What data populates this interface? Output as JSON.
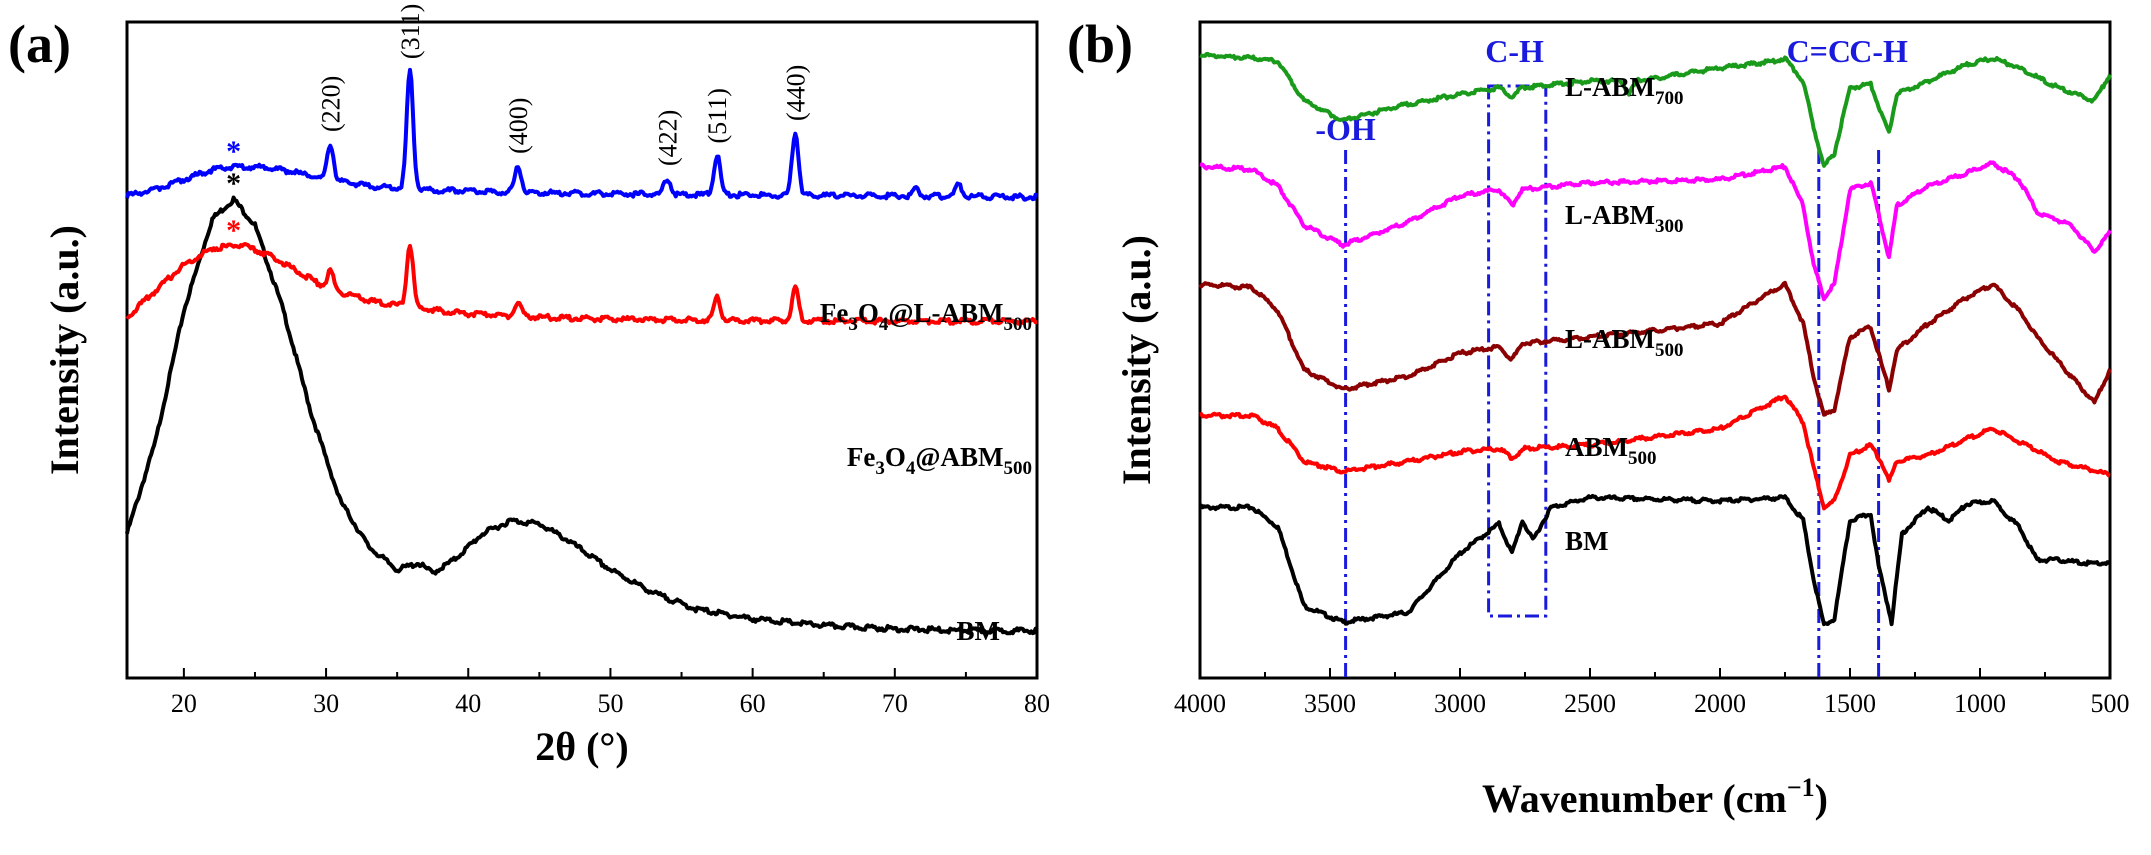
{
  "chart_data": [
    {
      "type": "line",
      "panel_label": "(a)",
      "xlabel": "2θ (°)",
      "ylabel": "Intensity (a.u.)",
      "xlim": [
        16,
        80
      ],
      "ylim": [
        0,
        10
      ],
      "xticks": [
        20,
        30,
        40,
        50,
        60,
        70,
        80
      ],
      "peak_labels": [
        {
          "text": "(220)",
          "x": 30.3
        },
        {
          "text": "(311)",
          "x": 35.9
        },
        {
          "text": "(400)",
          "x": 43.5
        },
        {
          "text": "(422)",
          "x": 54.0
        },
        {
          "text": "(511)",
          "x": 57.5
        },
        {
          "text": "(440)",
          "x": 63.0
        }
      ],
      "series": [
        {
          "name": "BM",
          "color": "#000000",
          "baseline": 0.7,
          "marker": {
            "text": "*",
            "x": 23.5
          },
          "points": [
            [
              16,
              2.2
            ],
            [
              18,
              3.6
            ],
            [
              20,
              5.6
            ],
            [
              22,
              7.0
            ],
            [
              23.5,
              7.3
            ],
            [
              25,
              6.9
            ],
            [
              27,
              5.6
            ],
            [
              29,
              4.0
            ],
            [
              31,
              2.7
            ],
            [
              33,
              2.0
            ],
            [
              35,
              1.65
            ],
            [
              36.5,
              1.75
            ],
            [
              37.5,
              1.6
            ],
            [
              39,
              1.8
            ],
            [
              41,
              2.2
            ],
            [
              43,
              2.4
            ],
            [
              45,
              2.35
            ],
            [
              47,
              2.1
            ],
            [
              50,
              1.65
            ],
            [
              53,
              1.3
            ],
            [
              56,
              1.05
            ],
            [
              60,
              0.9
            ],
            [
              65,
              0.8
            ],
            [
              70,
              0.75
            ],
            [
              75,
              0.72
            ],
            [
              80,
              0.72
            ]
          ],
          "peaks": []
        },
        {
          "name": "Fe3O4@ABM500",
          "color": "#ff0000",
          "baseline": 5.45,
          "marker": {
            "text": "*",
            "x": 23.5
          },
          "points": [
            [
              16,
              5.5
            ],
            [
              18,
              5.9
            ],
            [
              20,
              6.3
            ],
            [
              22,
              6.55
            ],
            [
              24,
              6.6
            ],
            [
              26,
              6.45
            ],
            [
              28,
              6.2
            ],
            [
              30,
              5.95
            ],
            [
              33,
              5.75
            ],
            [
              36,
              5.65
            ],
            [
              40,
              5.55
            ],
            [
              45,
              5.5
            ],
            [
              50,
              5.47
            ],
            [
              60,
              5.45
            ],
            [
              70,
              5.44
            ],
            [
              80,
              5.44
            ]
          ],
          "peaks": [
            [
              30.3,
              0.28
            ],
            [
              35.9,
              0.95
            ],
            [
              43.5,
              0.2
            ],
            [
              57.5,
              0.35
            ],
            [
              63.0,
              0.5
            ]
          ]
        },
        {
          "name": "Fe3O4@L-ABM500",
          "color": "#0000ff",
          "baseline": 7.35,
          "marker": {
            "text": "*",
            "x": 23.5
          },
          "points": [
            [
              16,
              7.35
            ],
            [
              18,
              7.45
            ],
            [
              20,
              7.6
            ],
            [
              22,
              7.75
            ],
            [
              24,
              7.8
            ],
            [
              26,
              7.78
            ],
            [
              28,
              7.7
            ],
            [
              30,
              7.6
            ],
            [
              33,
              7.5
            ],
            [
              36,
              7.45
            ],
            [
              40,
              7.42
            ],
            [
              45,
              7.4
            ],
            [
              50,
              7.38
            ],
            [
              60,
              7.36
            ],
            [
              70,
              7.35
            ],
            [
              80,
              7.33
            ]
          ],
          "peaks": [
            [
              30.3,
              0.55
            ],
            [
              35.9,
              1.8
            ],
            [
              43.5,
              0.4
            ],
            [
              54.0,
              0.25
            ],
            [
              57.5,
              0.6
            ],
            [
              63.0,
              0.95
            ],
            [
              71.5,
              0.12
            ],
            [
              74.5,
              0.18
            ]
          ]
        }
      ],
      "series_labels": [
        {
          "text_main": "Fe",
          "sub1": "3",
          "text_mid": "O",
          "sub2": "4",
          "text_end": "@L-ABM",
          "sub3": "500",
          "series": "Fe3O4@L-ABM500"
        },
        {
          "text_main": "Fe",
          "sub1": "3",
          "text_mid": "O",
          "sub2": "4",
          "text_end": "@ABM",
          "sub3": "500",
          "series": "Fe3O4@ABM500"
        },
        {
          "text_main": "BM",
          "series": "BM"
        }
      ]
    },
    {
      "type": "line",
      "panel_label": "(b)",
      "xlabel": "Wavenumber (cm",
      "xlabel_sup": "−1",
      "xlabel_close": ")",
      "ylabel": "Intensity (a.u.)",
      "xlim": [
        4000,
        500
      ],
      "ylim": [
        0,
        10
      ],
      "xticks": [
        4000,
        3500,
        3000,
        2500,
        2000,
        1500,
        1000,
        500
      ],
      "bands": [
        {
          "text": "-OH",
          "x": 3440
        },
        {
          "text": "C-H",
          "x": 2790
        },
        {
          "text": "C=C",
          "x": 1620
        },
        {
          "text": "C-H",
          "x": 1390
        }
      ],
      "ch_box": [
        2890,
        2670
      ],
      "series": [
        {
          "name": "BM",
          "color": "#000000",
          "points": [
            [
              4000,
              2.6
            ],
            [
              3800,
              2.6
            ],
            [
              3700,
              2.3
            ],
            [
              3600,
              1.1
            ],
            [
              3450,
              0.85
            ],
            [
              3200,
              1.0
            ],
            [
              3000,
              1.9
            ],
            [
              2900,
              2.2
            ],
            [
              2850,
              2.35
            ],
            [
              2800,
              1.9
            ],
            [
              2760,
              2.4
            ],
            [
              2720,
              2.1
            ],
            [
              2650,
              2.6
            ],
            [
              2500,
              2.75
            ],
            [
              2000,
              2.7
            ],
            [
              1750,
              2.75
            ],
            [
              1680,
              2.4
            ],
            [
              1640,
              1.5
            ],
            [
              1600,
              0.8
            ],
            [
              1560,
              0.9
            ],
            [
              1500,
              2.4
            ],
            [
              1420,
              2.5
            ],
            [
              1390,
              1.7
            ],
            [
              1360,
              1.2
            ],
            [
              1340,
              0.85
            ],
            [
              1300,
              2.2
            ],
            [
              1200,
              2.6
            ],
            [
              1120,
              2.4
            ],
            [
              1050,
              2.65
            ],
            [
              950,
              2.7
            ],
            [
              850,
              2.3
            ],
            [
              780,
              1.8
            ],
            [
              700,
              1.8
            ],
            [
              600,
              1.75
            ],
            [
              500,
              1.75
            ]
          ]
        },
        {
          "name": "ABM500",
          "color": "#ff0000",
          "points": [
            [
              4000,
              4.0
            ],
            [
              3800,
              4.0
            ],
            [
              3700,
              3.8
            ],
            [
              3600,
              3.3
            ],
            [
              3450,
              3.15
            ],
            [
              3200,
              3.3
            ],
            [
              3000,
              3.45
            ],
            [
              2850,
              3.5
            ],
            [
              2800,
              3.35
            ],
            [
              2750,
              3.5
            ],
            [
              2500,
              3.55
            ],
            [
              2000,
              3.8
            ],
            [
              1800,
              4.2
            ],
            [
              1750,
              4.3
            ],
            [
              1680,
              3.9
            ],
            [
              1640,
              3.2
            ],
            [
              1600,
              2.6
            ],
            [
              1560,
              2.7
            ],
            [
              1500,
              3.4
            ],
            [
              1420,
              3.55
            ],
            [
              1380,
              3.3
            ],
            [
              1350,
              3.0
            ],
            [
              1320,
              3.3
            ],
            [
              1200,
              3.4
            ],
            [
              1050,
              3.65
            ],
            [
              950,
              3.8
            ],
            [
              850,
              3.6
            ],
            [
              700,
              3.3
            ],
            [
              500,
              3.1
            ]
          ]
        },
        {
          "name": "L-ABM500",
          "color": "#8b0000",
          "points": [
            [
              4000,
              6.0
            ],
            [
              3800,
              5.95
            ],
            [
              3700,
              5.6
            ],
            [
              3600,
              4.7
            ],
            [
              3450,
              4.4
            ],
            [
              3200,
              4.6
            ],
            [
              3000,
              4.95
            ],
            [
              2850,
              5.05
            ],
            [
              2800,
              4.85
            ],
            [
              2760,
              5.1
            ],
            [
              2500,
              5.2
            ],
            [
              2000,
              5.4
            ],
            [
              1800,
              5.9
            ],
            [
              1750,
              6.0
            ],
            [
              1680,
              5.4
            ],
            [
              1640,
              4.6
            ],
            [
              1600,
              4.0
            ],
            [
              1560,
              4.1
            ],
            [
              1500,
              5.2
            ],
            [
              1420,
              5.35
            ],
            [
              1380,
              4.8
            ],
            [
              1350,
              4.4
            ],
            [
              1320,
              5.0
            ],
            [
              1200,
              5.4
            ],
            [
              1050,
              5.8
            ],
            [
              950,
              6.0
            ],
            [
              850,
              5.6
            ],
            [
              780,
              5.2
            ],
            [
              650,
              4.6
            ],
            [
              560,
              4.2
            ],
            [
              500,
              4.7
            ]
          ]
        },
        {
          "name": "L-ABM300",
          "color": "#ff00ff",
          "points": [
            [
              4000,
              7.8
            ],
            [
              3800,
              7.75
            ],
            [
              3700,
              7.5
            ],
            [
              3600,
              6.9
            ],
            [
              3450,
              6.6
            ],
            [
              3200,
              6.95
            ],
            [
              3000,
              7.35
            ],
            [
              2850,
              7.45
            ],
            [
              2800,
              7.2
            ],
            [
              2760,
              7.45
            ],
            [
              2500,
              7.55
            ],
            [
              2000,
              7.6
            ],
            [
              1800,
              7.75
            ],
            [
              1750,
              7.8
            ],
            [
              1680,
              7.2
            ],
            [
              1640,
              6.3
            ],
            [
              1600,
              5.8
            ],
            [
              1560,
              6.0
            ],
            [
              1500,
              7.45
            ],
            [
              1420,
              7.55
            ],
            [
              1380,
              6.9
            ],
            [
              1350,
              6.4
            ],
            [
              1320,
              7.2
            ],
            [
              1200,
              7.5
            ],
            [
              1050,
              7.7
            ],
            [
              950,
              7.85
            ],
            [
              850,
              7.6
            ],
            [
              780,
              7.1
            ],
            [
              650,
              6.9
            ],
            [
              560,
              6.5
            ],
            [
              500,
              6.8
            ]
          ]
        },
        {
          "name": "L-ABM700",
          "color": "#1a9a1a",
          "points": [
            [
              4000,
              9.5
            ],
            [
              3800,
              9.45
            ],
            [
              3700,
              9.4
            ],
            [
              3600,
              8.8
            ],
            [
              3450,
              8.5
            ],
            [
              3200,
              8.75
            ],
            [
              3000,
              8.9
            ],
            [
              2850,
              9.0
            ],
            [
              2800,
              8.85
            ],
            [
              2760,
              9.0
            ],
            [
              2500,
              9.1
            ],
            [
              2380,
              9.1
            ],
            [
              2350,
              8.9
            ],
            [
              2320,
              9.1
            ],
            [
              2000,
              9.3
            ],
            [
              1800,
              9.4
            ],
            [
              1750,
              9.45
            ],
            [
              1680,
              9.1
            ],
            [
              1640,
              8.4
            ],
            [
              1600,
              7.8
            ],
            [
              1560,
              8.0
            ],
            [
              1500,
              9.0
            ],
            [
              1420,
              9.05
            ],
            [
              1380,
              8.6
            ],
            [
              1350,
              8.3
            ],
            [
              1320,
              8.9
            ],
            [
              1200,
              9.1
            ],
            [
              1050,
              9.35
            ],
            [
              950,
              9.45
            ],
            [
              850,
              9.3
            ],
            [
              700,
              9.0
            ],
            [
              560,
              8.8
            ],
            [
              500,
              9.2
            ]
          ]
        }
      ],
      "series_labels": [
        {
          "text_main": "L-ABM",
          "sub": "700",
          "series": "L-ABM700"
        },
        {
          "text_main": "L-ABM",
          "sub": "300",
          "series": "L-ABM300"
        },
        {
          "text_main": "L-ABM",
          "sub": "500",
          "series": "L-ABM500"
        },
        {
          "text_main": "ABM",
          "sub": "500",
          "series": "ABM500"
        },
        {
          "text_main": "BM",
          "series": "BM"
        }
      ]
    }
  ]
}
